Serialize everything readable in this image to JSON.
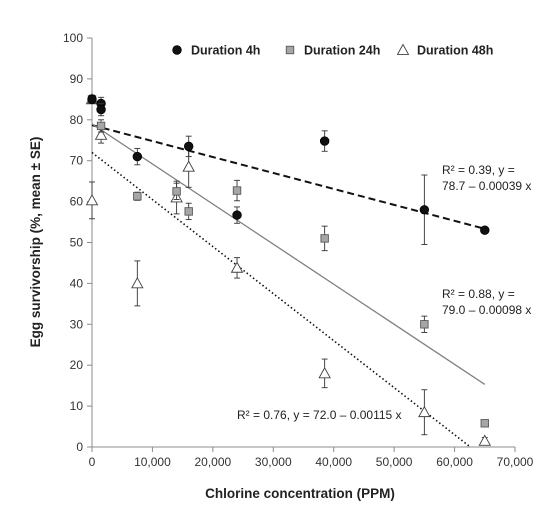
{
  "chart_data": {
    "type": "scatter",
    "xlabel": "Chlorine concentration (PPM)",
    "ylabel": "Egg survivorship (%, mean ± SE)",
    "xlim": [
      0,
      70000
    ],
    "ylim": [
      0,
      100
    ],
    "x_ticks": [
      "0",
      "10,000",
      "20,000",
      "30,000",
      "40,000",
      "50,000",
      "60,000",
      "70,000"
    ],
    "y_ticks": [
      "0",
      "10",
      "20",
      "30",
      "40",
      "50",
      "60",
      "70",
      "80",
      "90",
      "100"
    ],
    "grid": false,
    "legend_position": "top",
    "series": [
      {
        "name": "Duration 4h",
        "marker": "circle",
        "color": "#111111",
        "points": [
          {
            "x": 0,
            "y": 85.0,
            "err": 1.0
          },
          {
            "x": 1500,
            "y": 84.0,
            "err": 1.5
          },
          {
            "x": 1500,
            "y": 82.5,
            "err": 1.5
          },
          {
            "x": 7500,
            "y": 71.0,
            "err": 2.0
          },
          {
            "x": 16000,
            "y": 73.5,
            "err": 2.5
          },
          {
            "x": 24000,
            "y": 56.7,
            "err": 2.0
          },
          {
            "x": 38500,
            "y": 74.8,
            "err": 2.5
          },
          {
            "x": 55000,
            "y": 58.0,
            "err": 8.5
          },
          {
            "x": 65000,
            "y": 53.0,
            "err": 0.5
          }
        ]
      },
      {
        "name": "Duration 24h",
        "marker": "square",
        "color": "#a6a6a6",
        "points": [
          {
            "x": 0,
            "y": 85.0,
            "err": 1.0
          },
          {
            "x": 1500,
            "y": 78.5,
            "err": 1.5
          },
          {
            "x": 7500,
            "y": 61.3,
            "err": 1.0
          },
          {
            "x": 14000,
            "y": 62.5,
            "err": 2.0
          },
          {
            "x": 16000,
            "y": 57.6,
            "err": 2.0
          },
          {
            "x": 24000,
            "y": 62.7,
            "err": 2.5
          },
          {
            "x": 38500,
            "y": 51.0,
            "err": 3.0
          },
          {
            "x": 55000,
            "y": 30.0,
            "err": 2.0
          },
          {
            "x": 65000,
            "y": 5.8,
            "err": 0.5
          }
        ]
      },
      {
        "name": "Duration 48h",
        "marker": "triangle",
        "color": "#ffffff",
        "points": [
          {
            "x": 0,
            "y": 85.0,
            "err": 1.0
          },
          {
            "x": 1500,
            "y": 76.3,
            "err": 2.0
          },
          {
            "x": 0,
            "y": 60.3,
            "err": 4.5
          },
          {
            "x": 7500,
            "y": 40.0,
            "err": 5.5
          },
          {
            "x": 14000,
            "y": 61.0,
            "err": 4.0
          },
          {
            "x": 16000,
            "y": 68.5,
            "err": 5.0
          },
          {
            "x": 24000,
            "y": 43.8,
            "err": 2.5
          },
          {
            "x": 38500,
            "y": 18.0,
            "err": 3.5
          },
          {
            "x": 55000,
            "y": 8.5,
            "err": 5.5
          },
          {
            "x": 65000,
            "y": 1.5,
            "err": 0.8
          }
        ]
      }
    ],
    "trendlines": [
      {
        "series": "Duration 4h",
        "style": "dashed",
        "color": "#111111",
        "intercept": 78.7,
        "slope": -0.00039,
        "x_start": 0,
        "x_end": 65000,
        "label_line1": "R² = 0.39, y =",
        "label_line2": "78.7 – 0.00039 x"
      },
      {
        "series": "Duration 24h",
        "style": "solid",
        "color": "#7f7f7f",
        "intercept": 79.0,
        "slope": -0.00098,
        "x_start": 0,
        "x_end": 65000,
        "label_line1": "R² = 0.88, y =",
        "label_line2": "79.0 – 0.00098 x"
      },
      {
        "series": "Duration 48h",
        "style": "dotted",
        "color": "#111111",
        "intercept": 72.0,
        "slope": -0.00115,
        "x_start": 0,
        "x_end": 62600,
        "label_line1": "R² = 0.76, y = 72.0 – 0.00115 x",
        "label_line2": ""
      }
    ]
  }
}
